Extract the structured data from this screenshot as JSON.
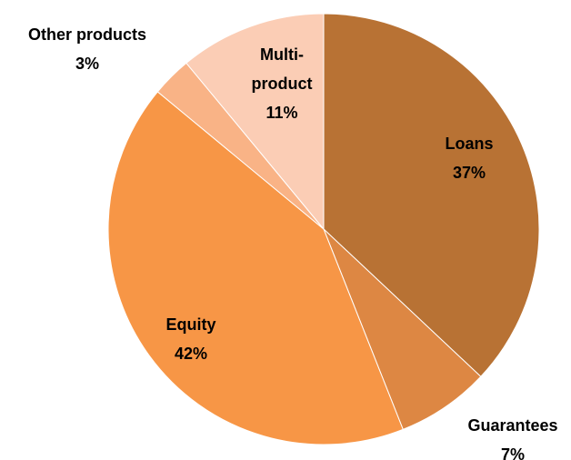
{
  "chart_data": {
    "type": "pie",
    "categories": [
      "Loans",
      "Guarantees",
      "Equity",
      "Other products",
      "Multi-product"
    ],
    "values": [
      37,
      7,
      42,
      3,
      11
    ],
    "value_labels": [
      "37%",
      "7%",
      "42%",
      "3%",
      "11%"
    ],
    "colors": [
      "#b87234",
      "#dd8743",
      "#f79646",
      "#f9b386",
      "#fbcdb5"
    ]
  }
}
